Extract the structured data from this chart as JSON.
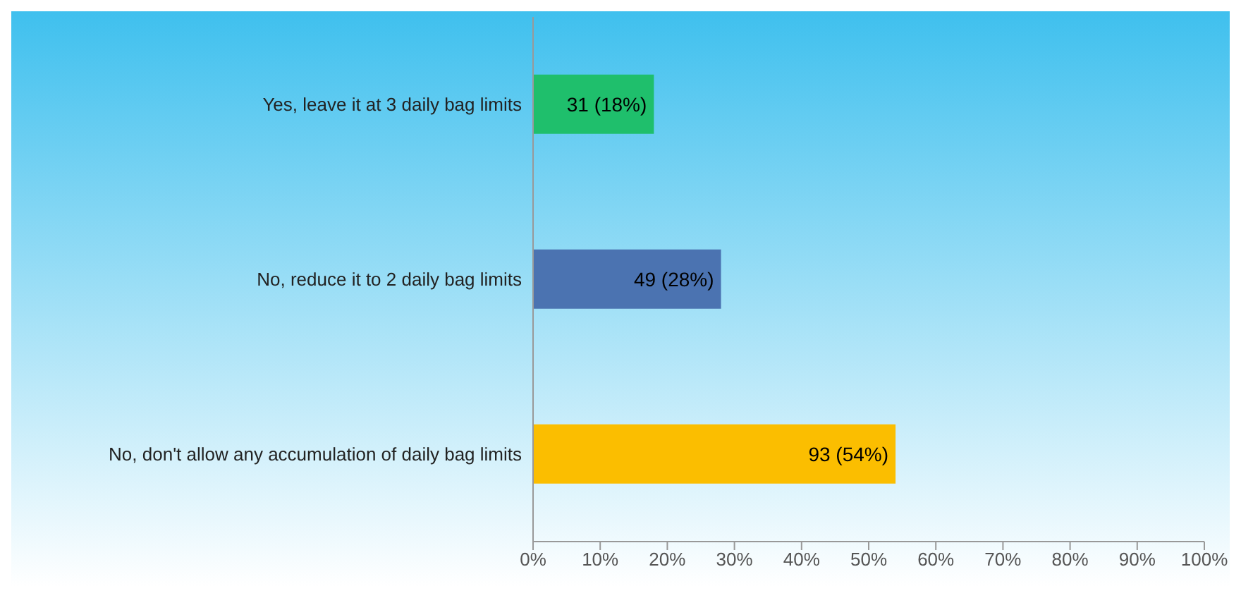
{
  "chart_data": {
    "type": "bar",
    "orientation": "horizontal",
    "categories": [
      "Yes, leave it at 3 daily bag limits",
      "No, reduce it to 2 daily bag limits",
      "No, don't allow any accumulation of daily bag limits"
    ],
    "values": [
      18,
      28,
      54
    ],
    "colors": [
      "#1fbf6c",
      "#4b73b1",
      "#fbbe00"
    ],
    "value_labels": [
      "31 (18%)",
      "49 (28%)",
      "93 (54%)"
    ],
    "xlim": [
      0,
      100
    ],
    "xticks": [
      {
        "value": 0,
        "label": "0%"
      },
      {
        "value": 10,
        "label": "10%"
      },
      {
        "value": 20,
        "label": "20%"
      },
      {
        "value": 30,
        "label": "30%"
      },
      {
        "value": 40,
        "label": "40%"
      },
      {
        "value": 50,
        "label": "50%"
      },
      {
        "value": 60,
        "label": "60%"
      },
      {
        "value": 70,
        "label": "70%"
      },
      {
        "value": 80,
        "label": "80%"
      },
      {
        "value": 90,
        "label": "90%"
      },
      {
        "value": 100,
        "label": "100%"
      }
    ]
  }
}
